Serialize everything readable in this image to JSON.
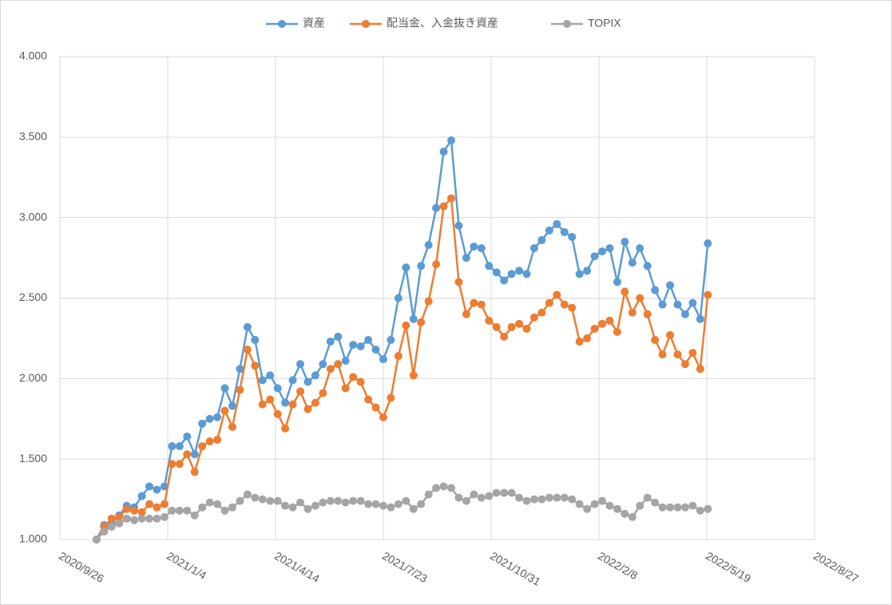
{
  "chart_data": {
    "type": "line",
    "x": [
      "2020/10/30",
      "2020/11/6",
      "2020/11/13",
      "2020/11/20",
      "2020/11/27",
      "2020/12/4",
      "2020/12/11",
      "2020/12/18",
      "2020/12/25",
      "2021/1/1",
      "2021/1/8",
      "2021/1/15",
      "2021/1/22",
      "2021/1/29",
      "2021/2/5",
      "2021/2/12",
      "2021/2/19",
      "2021/2/26",
      "2021/3/5",
      "2021/3/12",
      "2021/3/19",
      "2021/3/26",
      "2021/4/2",
      "2021/4/9",
      "2021/4/16",
      "2021/4/23",
      "2021/4/30",
      "2021/5/7",
      "2021/5/14",
      "2021/5/21",
      "2021/5/28",
      "2021/6/4",
      "2021/6/11",
      "2021/6/18",
      "2021/6/25",
      "2021/7/2",
      "2021/7/9",
      "2021/7/16",
      "2021/7/23",
      "2021/7/30",
      "2021/8/6",
      "2021/8/13",
      "2021/8/20",
      "2021/8/27",
      "2021/9/3",
      "2021/9/10",
      "2021/9/17",
      "2021/9/24",
      "2021/10/1",
      "2021/10/8",
      "2021/10/15",
      "2021/10/22",
      "2021/10/29",
      "2021/11/5",
      "2021/11/12",
      "2021/11/19",
      "2021/11/26",
      "2021/12/3",
      "2021/12/10",
      "2021/12/17",
      "2021/12/24",
      "2021/12/31",
      "2022/1/7",
      "2022/1/14",
      "2022/1/21",
      "2022/1/28",
      "2022/2/4",
      "2022/2/11",
      "2022/2/18",
      "2022/2/25",
      "2022/3/4",
      "2022/3/11",
      "2022/3/18",
      "2022/3/25",
      "2022/4/1",
      "2022/4/8",
      "2022/4/15",
      "2022/4/22",
      "2022/4/29",
      "2022/5/6",
      "2022/5/13",
      "2022/5/20"
    ],
    "series": [
      {
        "name": "資産",
        "color": "#5b9bd5",
        "values": [
          1.0,
          1.09,
          1.1,
          1.15,
          1.21,
          1.2,
          1.27,
          1.33,
          1.31,
          1.33,
          1.58,
          1.58,
          1.64,
          1.53,
          1.72,
          1.75,
          1.76,
          1.94,
          1.83,
          2.06,
          2.32,
          2.24,
          1.99,
          2.02,
          1.94,
          1.85,
          1.99,
          2.09,
          1.98,
          2.02,
          2.09,
          2.23,
          2.26,
          2.11,
          2.21,
          2.2,
          2.24,
          2.18,
          2.12,
          2.24,
          2.5,
          2.69,
          2.37,
          2.7,
          2.83,
          3.06,
          3.41,
          3.48,
          2.95,
          2.75,
          2.82,
          2.81,
          2.7,
          2.66,
          2.61,
          2.65,
          2.67,
          2.65,
          2.81,
          2.86,
          2.92,
          2.96,
          2.91,
          2.88,
          2.65,
          2.67,
          2.76,
          2.79,
          2.81,
          2.6,
          2.85,
          2.72,
          2.81,
          2.7,
          2.55,
          2.46,
          2.58,
          2.46,
          2.4,
          2.47,
          2.37,
          2.84
        ]
      },
      {
        "name": "配当金、入金抜き資産",
        "color": "#ed7d31",
        "values": [
          1.0,
          1.08,
          1.13,
          1.14,
          1.19,
          1.18,
          1.17,
          1.22,
          1.2,
          1.22,
          1.47,
          1.47,
          1.53,
          1.42,
          1.58,
          1.61,
          1.62,
          1.8,
          1.7,
          1.93,
          2.18,
          2.08,
          1.84,
          1.87,
          1.78,
          1.69,
          1.84,
          1.92,
          1.81,
          1.85,
          1.91,
          2.06,
          2.09,
          1.94,
          2.01,
          1.98,
          1.87,
          1.82,
          1.76,
          1.88,
          2.14,
          2.33,
          2.02,
          2.35,
          2.48,
          2.71,
          3.07,
          3.12,
          2.6,
          2.4,
          2.47,
          2.46,
          2.36,
          2.32,
          2.26,
          2.32,
          2.34,
          2.31,
          2.38,
          2.41,
          2.47,
          2.52,
          2.46,
          2.44,
          2.23,
          2.25,
          2.31,
          2.34,
          2.36,
          2.29,
          2.54,
          2.41,
          2.5,
          2.4,
          2.24,
          2.15,
          2.27,
          2.15,
          2.09,
          2.16,
          2.06,
          2.52
        ]
      },
      {
        "name": "TOPIX",
        "color": "#a5a5a5",
        "values": [
          1.0,
          1.05,
          1.08,
          1.1,
          1.13,
          1.12,
          1.13,
          1.13,
          1.13,
          1.14,
          1.18,
          1.18,
          1.18,
          1.15,
          1.2,
          1.23,
          1.22,
          1.18,
          1.2,
          1.24,
          1.28,
          1.26,
          1.25,
          1.24,
          1.24,
          1.21,
          1.2,
          1.23,
          1.19,
          1.21,
          1.23,
          1.24,
          1.24,
          1.23,
          1.24,
          1.24,
          1.22,
          1.22,
          1.21,
          1.2,
          1.22,
          1.24,
          1.19,
          1.22,
          1.28,
          1.32,
          1.33,
          1.32,
          1.26,
          1.24,
          1.28,
          1.26,
          1.27,
          1.29,
          1.29,
          1.29,
          1.26,
          1.24,
          1.25,
          1.25,
          1.26,
          1.26,
          1.26,
          1.25,
          1.22,
          1.19,
          1.22,
          1.24,
          1.21,
          1.19,
          1.16,
          1.14,
          1.21,
          1.26,
          1.23,
          1.2,
          1.2,
          1.2,
          1.2,
          1.21,
          1.18,
          1.19
        ]
      }
    ],
    "xlim": [
      "2020/9/26",
      "2022/8/27"
    ],
    "xticks": [
      "2020/9/26",
      "2021/1/4",
      "2021/4/14",
      "2021/7/23",
      "2021/10/31",
      "2022/2/8",
      "2022/5/19",
      "2022/8/27"
    ],
    "ylim": [
      1,
      4
    ],
    "yticks": [
      {
        "value": 1,
        "label": "1.000"
      },
      {
        "value": 1.5,
        "label": "1.500"
      },
      {
        "value": 2,
        "label": "2.000"
      },
      {
        "value": 2.5,
        "label": "2.500"
      },
      {
        "value": 3,
        "label": "3.000"
      },
      {
        "value": 3.5,
        "label": "3.500"
      },
      {
        "value": 4,
        "label": "4.000"
      }
    ],
    "grid": true,
    "legend": "top"
  }
}
